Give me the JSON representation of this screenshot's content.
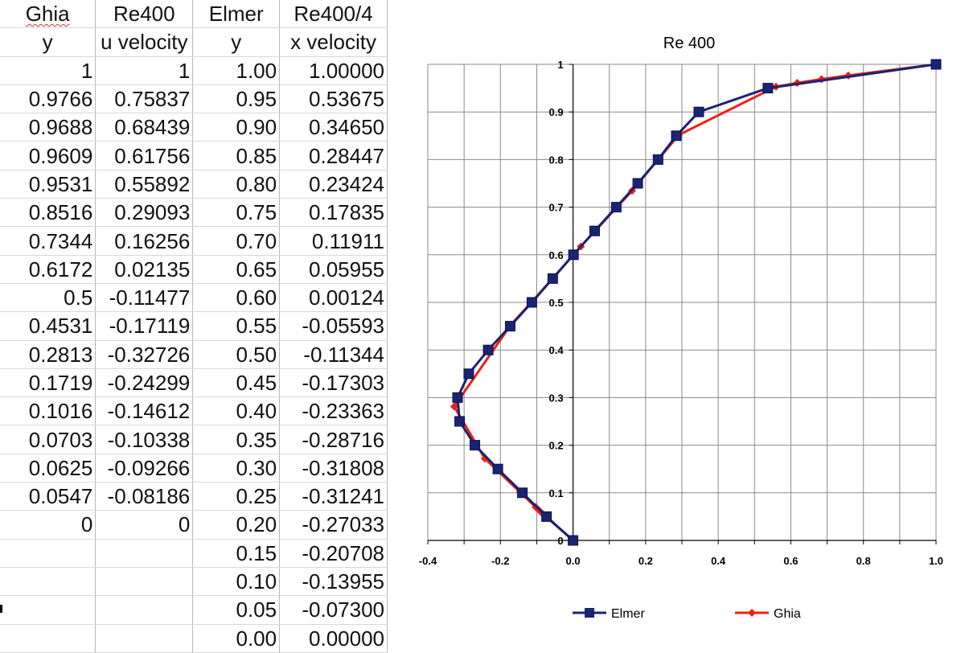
{
  "table": {
    "headers": [
      [
        "Ghia",
        "Re400",
        "Elmer",
        "Re400/4"
      ],
      [
        "y",
        "u velocity",
        "y",
        "x velocity"
      ]
    ],
    "rows": [
      [
        "1",
        "1",
        "1.00",
        "1.00000"
      ],
      [
        "0.9766",
        "0.75837",
        "0.95",
        "0.53675"
      ],
      [
        "0.9688",
        "0.68439",
        "0.90",
        "0.34650"
      ],
      [
        "0.9609",
        "0.61756",
        "0.85",
        "0.28447"
      ],
      [
        "0.9531",
        "0.55892",
        "0.80",
        "0.23424"
      ],
      [
        "0.8516",
        "0.29093",
        "0.75",
        "0.17835"
      ],
      [
        "0.7344",
        "0.16256",
        "0.70",
        "0.11911"
      ],
      [
        "0.6172",
        "0.02135",
        "0.65",
        "0.05955"
      ],
      [
        "0.5",
        "-0.11477",
        "0.60",
        "0.00124"
      ],
      [
        "0.4531",
        "-0.17119",
        "0.55",
        "-0.05593"
      ],
      [
        "0.2813",
        "-0.32726",
        "0.50",
        "-0.11344"
      ],
      [
        "0.1719",
        "-0.24299",
        "0.45",
        "-0.17303"
      ],
      [
        "0.1016",
        "-0.14612",
        "0.40",
        "-0.23363"
      ],
      [
        "0.0703",
        "-0.10338",
        "0.35",
        "-0.28716"
      ],
      [
        "0.0625",
        "-0.09266",
        "0.30",
        "-0.31808"
      ],
      [
        "0.0547",
        "-0.08186",
        "0.25",
        "-0.31241"
      ],
      [
        "0",
        "0",
        "0.20",
        "-0.27033"
      ],
      [
        "",
        "",
        "0.15",
        "-0.20708"
      ],
      [
        "",
        "",
        "0.10",
        "-0.13955"
      ],
      [
        "",
        "",
        "0.05",
        "-0.07300"
      ],
      [
        "",
        "",
        "0.00",
        "0.00000"
      ]
    ]
  },
  "chart_data": {
    "type": "scatter",
    "title": "Re 400",
    "xlabel": "",
    "ylabel": "",
    "xlim": [
      -0.4,
      1.0
    ],
    "ylim": [
      0,
      1
    ],
    "x_ticks": [
      "-0.4",
      "-0.2",
      "0.0",
      "0.2",
      "0.4",
      "0.6",
      "0.8",
      "1.0"
    ],
    "y_ticks": [
      "0",
      "0.1",
      "0.2",
      "0.3",
      "0.4",
      "0.5",
      "0.6",
      "0.7",
      "0.8",
      "0.9",
      "1"
    ],
    "grid": true,
    "legend_position": "bottom",
    "series": [
      {
        "name": "Elmer",
        "color": "#1a2472",
        "marker": "square",
        "x": [
          1.0,
          0.53675,
          0.3465,
          0.28447,
          0.23424,
          0.17835,
          0.11911,
          0.05955,
          0.00124,
          -0.05593,
          -0.11344,
          -0.17303,
          -0.23363,
          -0.28716,
          -0.31808,
          -0.31241,
          -0.27033,
          -0.20708,
          -0.13955,
          -0.073,
          0.0
        ],
        "y": [
          1.0,
          0.95,
          0.9,
          0.85,
          0.8,
          0.75,
          0.7,
          0.65,
          0.6,
          0.55,
          0.5,
          0.45,
          0.4,
          0.35,
          0.3,
          0.25,
          0.2,
          0.15,
          0.1,
          0.05,
          0.0
        ]
      },
      {
        "name": "Ghia",
        "color": "#f02010",
        "marker": "diamond",
        "x": [
          1.0,
          0.75837,
          0.68439,
          0.61756,
          0.55892,
          0.29093,
          0.16256,
          0.02135,
          -0.11477,
          -0.17119,
          -0.32726,
          -0.24299,
          -0.14612,
          -0.10338,
          -0.09266,
          -0.08186,
          0.0
        ],
        "y": [
          1.0,
          0.9766,
          0.9688,
          0.9609,
          0.9531,
          0.8516,
          0.7344,
          0.6172,
          0.5,
          0.4531,
          0.2813,
          0.1719,
          0.1016,
          0.0703,
          0.0625,
          0.0547,
          0.0
        ]
      }
    ]
  }
}
